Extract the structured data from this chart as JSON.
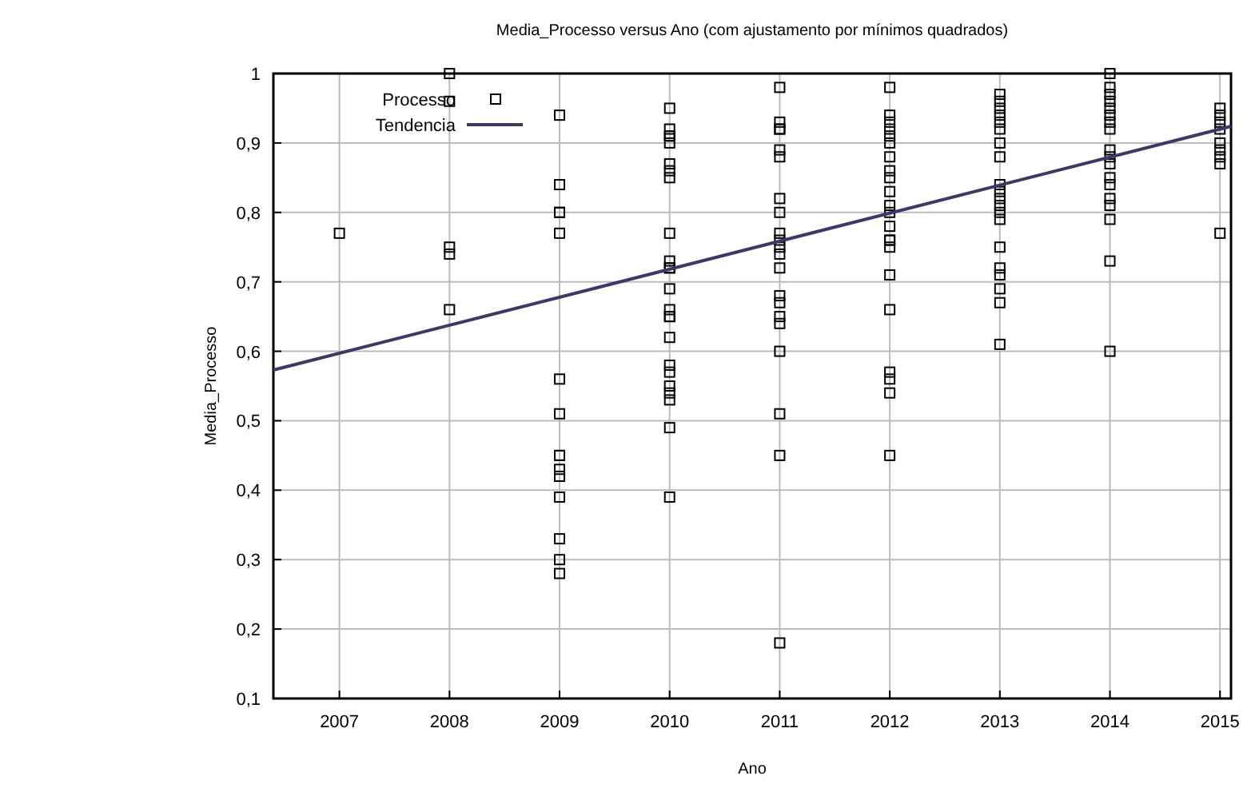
{
  "chart_data": {
    "type": "scatter",
    "title": "Media_Processo versus Ano (com ajustamento por mínimos quadrados)",
    "xlabel": "Ano",
    "ylabel": "Media_Processo",
    "xlim": [
      2006.4,
      2015.1
    ],
    "xticks": [
      2007,
      2008,
      2009,
      2010,
      2011,
      2012,
      2013,
      2014,
      2015
    ],
    "ylim": [
      0.1,
      1
    ],
    "yticks": [
      {
        "value": 0.1,
        "label": "0,1"
      },
      {
        "value": 0.2,
        "label": "0,2"
      },
      {
        "value": 0.3,
        "label": "0,3"
      },
      {
        "value": 0.4,
        "label": "0,4"
      },
      {
        "value": 0.5,
        "label": "0,5"
      },
      {
        "value": 0.6,
        "label": "0,6"
      },
      {
        "value": 0.7,
        "label": "0,7"
      },
      {
        "value": 0.8,
        "label": "0,8"
      },
      {
        "value": 0.9,
        "label": "0,9"
      },
      {
        "value": 1,
        "label": "1"
      }
    ],
    "grid": true,
    "legend": "top left",
    "marker": "square",
    "series": [
      {
        "name": "Processo",
        "color": "#000000",
        "x": [
          2007,
          2008,
          2008,
          2008,
          2008,
          2008,
          2009,
          2009,
          2009,
          2009,
          2009,
          2009,
          2009,
          2009,
          2009,
          2009,
          2009,
          2009,
          2009,
          2009,
          2009,
          2009,
          2010,
          2010,
          2010,
          2010,
          2010,
          2010,
          2010,
          2010,
          2010,
          2010,
          2010,
          2010,
          2010,
          2010,
          2010,
          2010,
          2010,
          2010,
          2010,
          2010,
          2010,
          2010,
          2010,
          2010,
          2011,
          2011,
          2011,
          2011,
          2011,
          2011,
          2011,
          2011,
          2011,
          2011,
          2011,
          2011,
          2011,
          2011,
          2011,
          2011,
          2011,
          2011,
          2011,
          2011,
          2011,
          2012,
          2012,
          2012,
          2012,
          2012,
          2012,
          2012,
          2012,
          2012,
          2012,
          2012,
          2012,
          2012,
          2012,
          2012,
          2012,
          2012,
          2012,
          2012,
          2012,
          2012,
          2012,
          2013,
          2013,
          2013,
          2013,
          2013,
          2013,
          2013,
          2013,
          2013,
          2013,
          2013,
          2013,
          2013,
          2013,
          2013,
          2013,
          2013,
          2013,
          2013,
          2013,
          2014,
          2014,
          2014,
          2014,
          2014,
          2014,
          2014,
          2014,
          2014,
          2014,
          2014,
          2014,
          2014,
          2014,
          2014,
          2014,
          2014,
          2014,
          2015,
          2015,
          2015,
          2015,
          2015,
          2015,
          2015,
          2015,
          2015
        ],
        "values": [
          0.77,
          1.0,
          0.96,
          0.75,
          0.74,
          0.66,
          0.94,
          0.84,
          0.8,
          0.8,
          0.77,
          0.56,
          0.51,
          0.45,
          0.45,
          0.43,
          0.42,
          0.42,
          0.39,
          0.33,
          0.3,
          0.28,
          0.95,
          0.92,
          0.91,
          0.91,
          0.9,
          0.87,
          0.86,
          0.85,
          0.77,
          0.73,
          0.72,
          0.72,
          0.69,
          0.66,
          0.65,
          0.65,
          0.62,
          0.58,
          0.57,
          0.55,
          0.54,
          0.53,
          0.49,
          0.39,
          0.98,
          0.93,
          0.92,
          0.92,
          0.89,
          0.88,
          0.82,
          0.8,
          0.77,
          0.76,
          0.75,
          0.74,
          0.72,
          0.68,
          0.67,
          0.65,
          0.64,
          0.6,
          0.51,
          0.45,
          0.18,
          0.98,
          0.94,
          0.93,
          0.92,
          0.91,
          0.9,
          0.88,
          0.86,
          0.85,
          0.83,
          0.81,
          0.8,
          0.78,
          0.76,
          0.76,
          0.75,
          0.71,
          0.66,
          0.57,
          0.56,
          0.54,
          0.45,
          0.97,
          0.96,
          0.95,
          0.94,
          0.93,
          0.92,
          0.9,
          0.88,
          0.84,
          0.83,
          0.82,
          0.81,
          0.8,
          0.79,
          0.75,
          0.72,
          0.71,
          0.69,
          0.67,
          0.61,
          1.0,
          0.98,
          0.97,
          0.96,
          0.95,
          0.94,
          0.93,
          0.92,
          0.89,
          0.88,
          0.87,
          0.85,
          0.84,
          0.82,
          0.81,
          0.79,
          0.73,
          0.6,
          0.95,
          0.94,
          0.93,
          0.92,
          0.9,
          0.89,
          0.88,
          0.87,
          0.77
        ]
      },
      {
        "name": "Tendencia",
        "type": "line",
        "color": "#3a3a68",
        "marker": "none",
        "line_style": "solid",
        "x": [
          2006.4,
          2015.1
        ],
        "values": [
          0.573,
          0.924
        ]
      }
    ]
  }
}
